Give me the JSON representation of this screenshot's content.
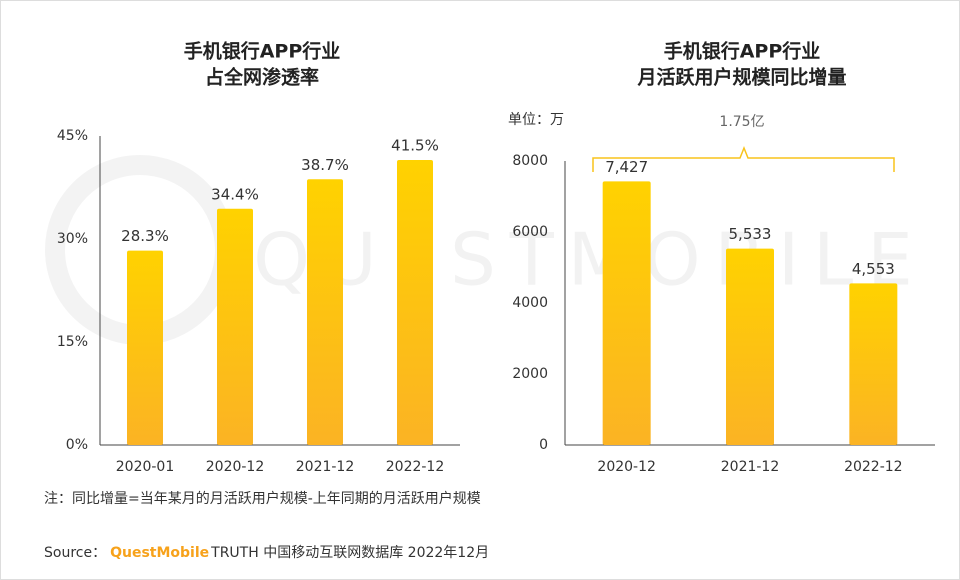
{
  "watermark": "QUESTMOBILE",
  "chart_data": [
    {
      "type": "bar",
      "title": [
        "手机银行APP行业",
        "占全网渗透率"
      ],
      "categories": [
        "2020-01",
        "2020-12",
        "2021-12",
        "2022-12"
      ],
      "values": [
        28.3,
        34.4,
        38.7,
        41.5
      ],
      "value_labels": [
        "28.3%",
        "34.4%",
        "38.7%",
        "41.5%"
      ],
      "ylim": [
        0,
        45
      ],
      "yticks": [
        {
          "value": 0,
          "label": "0%"
        },
        {
          "value": 15,
          "label": "15%"
        },
        {
          "value": 30,
          "label": "30%"
        },
        {
          "value": 45,
          "label": "45%"
        }
      ],
      "color": [
        "#ffd200",
        "#fbb324"
      ],
      "grid": false
    },
    {
      "type": "bar",
      "title": [
        "手机银行APP行业",
        "月活跃用户规模同比增量"
      ],
      "unit_label": "单位：万",
      "annotation": "1.75亿",
      "categories": [
        "2020-12",
        "2021-12",
        "2022-12"
      ],
      "values": [
        7427,
        5533,
        4553
      ],
      "value_labels": [
        "7,427",
        "5,533",
        "4,553"
      ],
      "ylim": [
        0,
        8000
      ],
      "yticks": [
        0,
        2000,
        4000,
        6000,
        8000
      ],
      "color": [
        "#ffd200",
        "#fbb324"
      ],
      "grid": false
    }
  ],
  "note": "注：同比增量=当年某月的月活跃用户规模-上年同期的月活跃用户规模",
  "source": {
    "label": "Source：",
    "brand": "QuestMobile",
    "text": "TRUTH 中国移动互联网数据库 2022年12月"
  }
}
